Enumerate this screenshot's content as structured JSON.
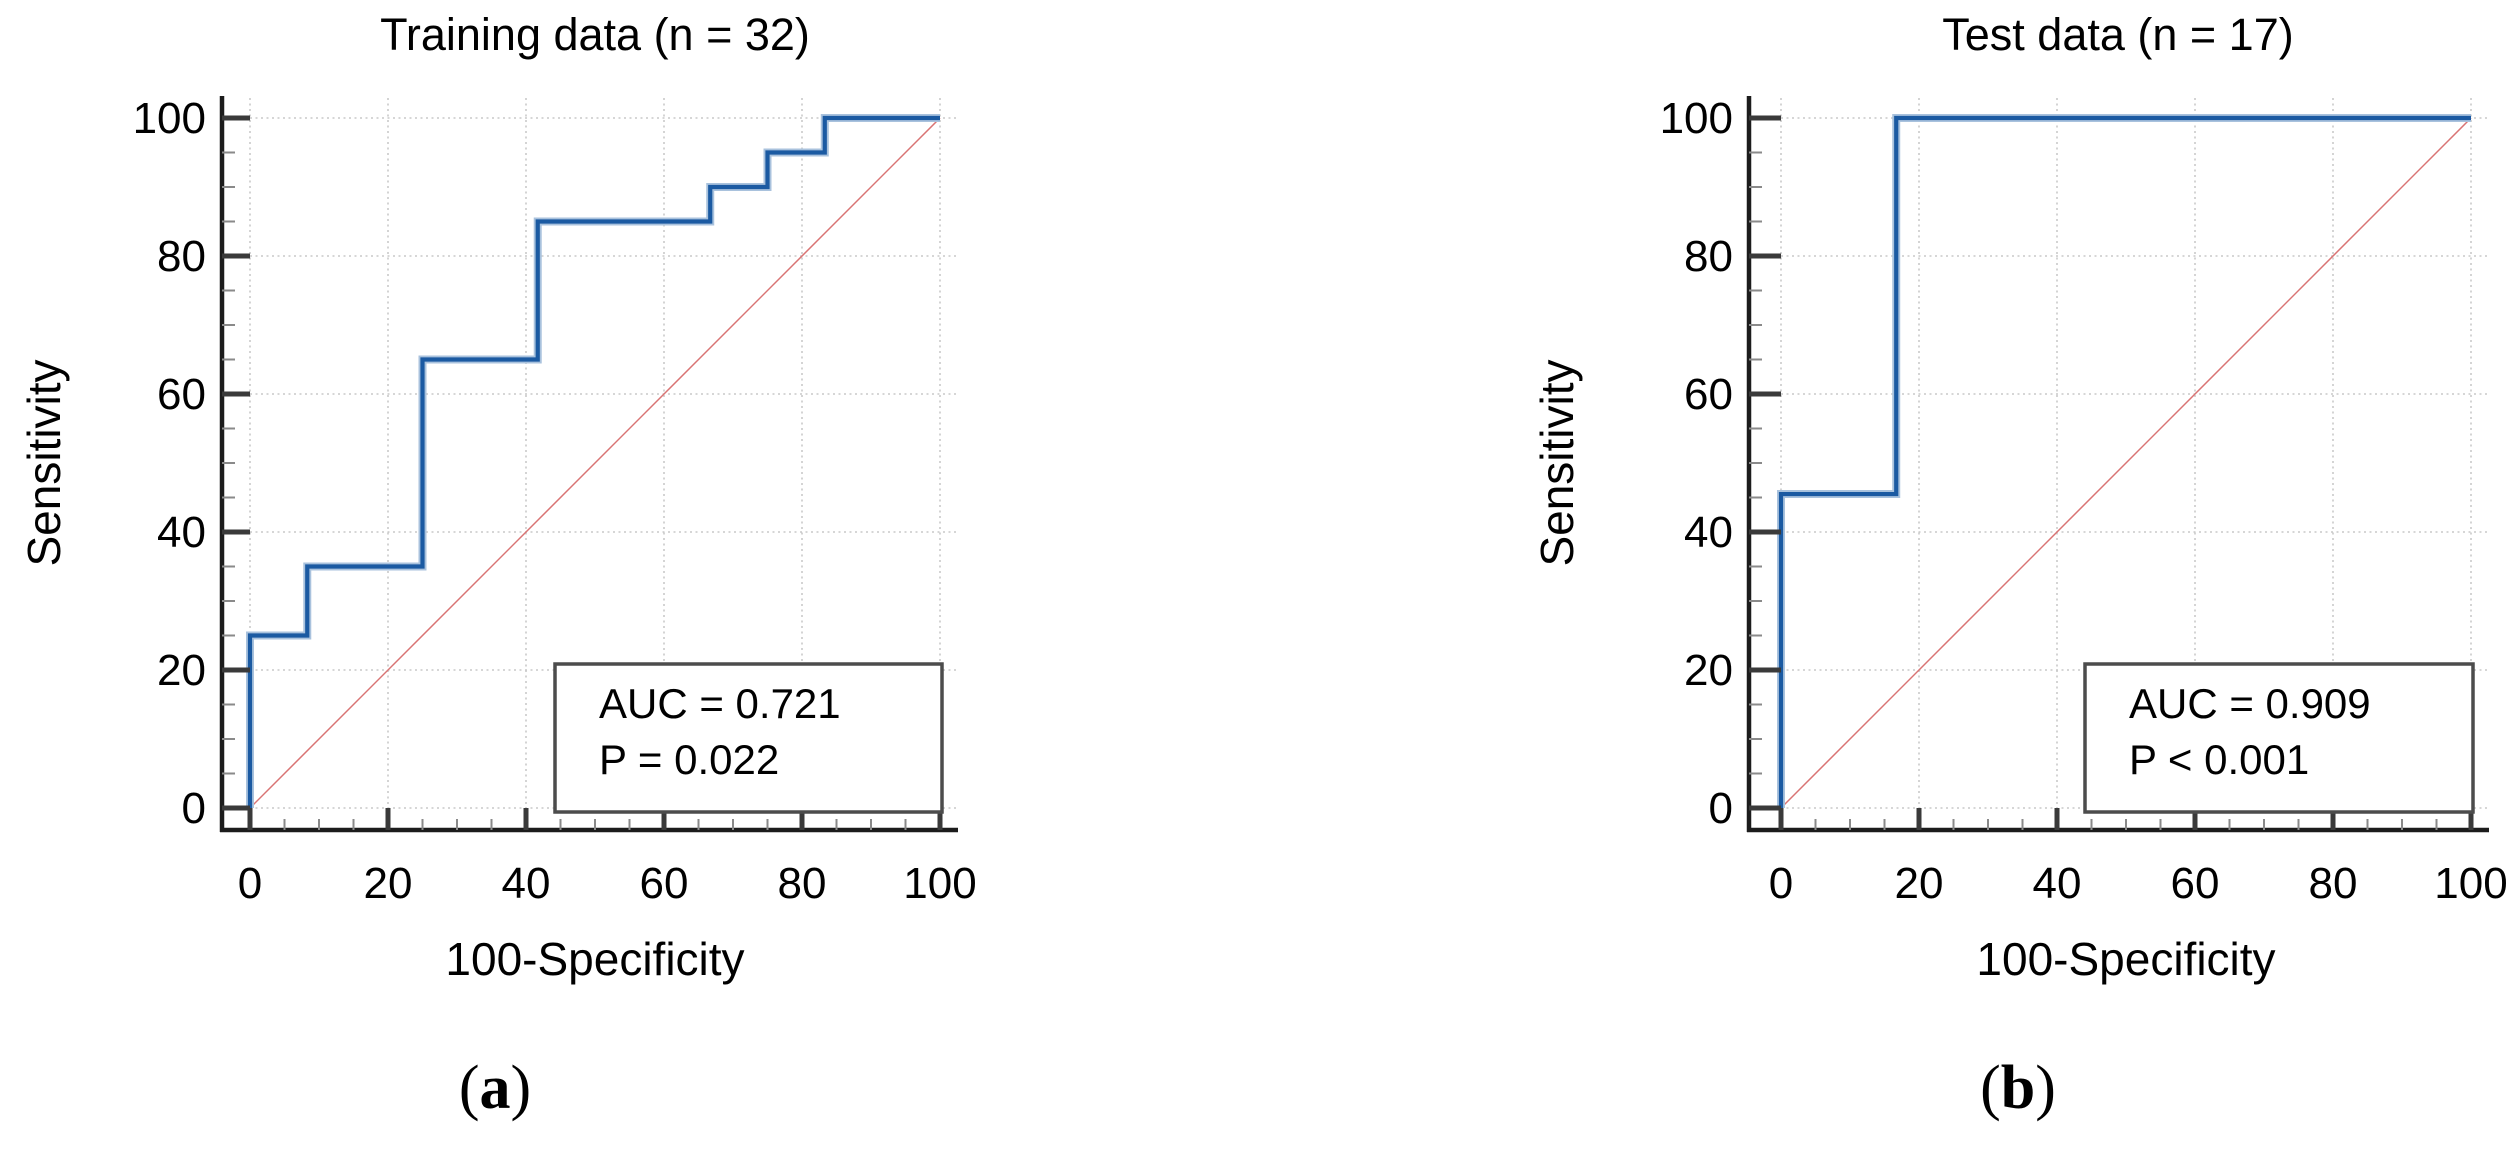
{
  "figure": {
    "background": "#ffffff",
    "description": "Two ROC curve panels side by side"
  },
  "colors": {
    "roc_line": "#1b5aa2",
    "roc_halo": "#a9c2dd",
    "diagonal": "#d97474",
    "gridline": "#c9c9c9",
    "axis": "#1c1c1c",
    "major_tick": "#3a3a3a",
    "minor_tick": "#8a8a8a",
    "box_border": "#4c4c4c",
    "box_fill": "#ffffff",
    "text": "#000000"
  },
  "axes": {
    "x_label": "100-Specificity",
    "y_label": "Sensitivity",
    "x_major_ticks": [
      0,
      20,
      40,
      60,
      80,
      100
    ],
    "y_major_ticks": [
      0,
      20,
      40,
      60,
      80,
      100
    ],
    "minor_tick_step": 5,
    "xlim": [
      0,
      100
    ],
    "ylim": [
      0,
      100
    ],
    "grid": "dotted major gridlines"
  },
  "panels": [
    {
      "caption_open": "(",
      "caption_letter": "a",
      "caption_close": ")",
      "annotation": {
        "line1": "AUC = 0.721",
        "line2": "P = 0.022"
      }
    },
    {
      "caption_open": "(",
      "caption_letter": "b",
      "caption_close": ")",
      "annotation": {
        "line1": "AUC = 0.909",
        "line2": "P < 0.001"
      }
    }
  ],
  "chart_data": [
    {
      "type": "line",
      "subtype": "roc_step_curve",
      "title": "Training data (n = 32)",
      "n": 32,
      "xlabel": "100-Specificity",
      "ylabel": "Sensitivity",
      "xlim": [
        0,
        100
      ],
      "ylim": [
        0,
        100
      ],
      "grid": true,
      "legend": false,
      "auc": 0.721,
      "p_value": "= 0.022",
      "series": [
        {
          "name": "ROC curve",
          "color": "#1b5aa2",
          "points": [
            [
              0,
              0
            ],
            [
              0,
              25
            ],
            [
              8.3,
              25
            ],
            [
              8.3,
              35
            ],
            [
              25,
              35
            ],
            [
              25,
              65
            ],
            [
              41.7,
              65
            ],
            [
              41.7,
              85
            ],
            [
              66.7,
              85
            ],
            [
              66.7,
              90
            ],
            [
              75,
              90
            ],
            [
              75,
              95
            ],
            [
              83.3,
              95
            ],
            [
              83.3,
              100
            ],
            [
              100,
              100
            ]
          ]
        },
        {
          "name": "Reference diagonal",
          "color": "#d97474",
          "points": [
            [
              0,
              0
            ],
            [
              100,
              100
            ]
          ]
        }
      ]
    },
    {
      "type": "line",
      "subtype": "roc_step_curve",
      "title": "Test data (n = 17)",
      "n": 17,
      "xlabel": "100-Specificity",
      "ylabel": "Sensitivity",
      "xlim": [
        0,
        100
      ],
      "ylim": [
        0,
        100
      ],
      "grid": true,
      "legend": false,
      "auc": 0.909,
      "p_value": "< 0.001",
      "series": [
        {
          "name": "ROC curve",
          "color": "#1b5aa2",
          "points": [
            [
              0,
              0
            ],
            [
              0,
              45.5
            ],
            [
              16.7,
              45.5
            ],
            [
              16.7,
              100
            ],
            [
              100,
              100
            ]
          ]
        },
        {
          "name": "Reference diagonal",
          "color": "#d97474",
          "points": [
            [
              0,
              0
            ],
            [
              100,
              100
            ]
          ]
        }
      ]
    }
  ]
}
